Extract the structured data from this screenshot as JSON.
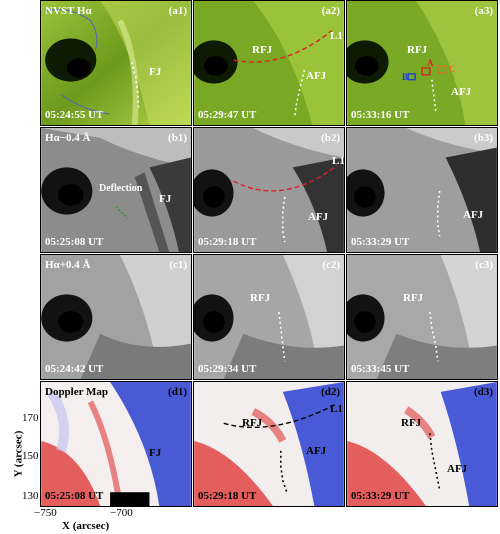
{
  "panels": [
    {
      "id": "a1",
      "tag": "(a1)",
      "time": "05:24:55 UT",
      "header": "NVST  Hα",
      "labels": [
        "FJ"
      ]
    },
    {
      "id": "a2",
      "tag": "(a2)",
      "time": "05:29:47 UT",
      "header": "",
      "labels": [
        "RFJ",
        "AFJ",
        "L1"
      ]
    },
    {
      "id": "a3",
      "tag": "(a3)",
      "time": "05:33:16 UT",
      "header": "",
      "labels": [
        "RFJ",
        "AFJ",
        "A",
        "B",
        "C"
      ]
    },
    {
      "id": "b1",
      "tag": "(b1)",
      "time": "05:25:08 UT",
      "header": "Hα−0.4 Å",
      "labels": [
        "Deflection",
        "FJ"
      ]
    },
    {
      "id": "b2",
      "tag": "(b2)",
      "time": "05:29:18 UT",
      "header": "",
      "labels": [
        "L1",
        "AFJ"
      ]
    },
    {
      "id": "b3",
      "tag": "(b3)",
      "time": "05:33:29 UT",
      "header": "",
      "labels": [
        "AFJ"
      ]
    },
    {
      "id": "c1",
      "tag": "(c1)",
      "time": "05:24:42 UT",
      "header": "Hα+0.4 Å",
      "labels": []
    },
    {
      "id": "c2",
      "tag": "(c2)",
      "time": "05:29:34 UT",
      "header": "",
      "labels": [
        "RFJ"
      ]
    },
    {
      "id": "c3",
      "tag": "(c3)",
      "time": "05:33:45 UT",
      "header": "",
      "labels": [
        "RFJ"
      ]
    },
    {
      "id": "d1",
      "tag": "(d1)",
      "time": "05:25:08 UT",
      "header": "Doppler Map",
      "labels": [
        "FJ"
      ]
    },
    {
      "id": "d2",
      "tag": "(d2)",
      "time": "05:29:18 UT",
      "header": "",
      "labels": [
        "RFJ",
        "AFJ",
        "L1"
      ]
    },
    {
      "id": "d3",
      "tag": "(d3)",
      "time": "05:33:29 UT",
      "header": "",
      "labels": [
        "RFJ",
        "AFJ"
      ]
    }
  ],
  "axes": {
    "x_title": "X (arcsec)",
    "y_title": "Y (arcsec)",
    "x_ticks": [
      "−750",
      "−700"
    ],
    "y_ticks": [
      "170",
      "150",
      "130"
    ]
  },
  "colors": {
    "halpha": "#6c9a1c",
    "red_marker": "#e02020",
    "orange_box": "#e07020",
    "blue_box": "#2040d0",
    "doppler_red": "#e03a3a",
    "doppler_blue": "#2a3fd0"
  }
}
